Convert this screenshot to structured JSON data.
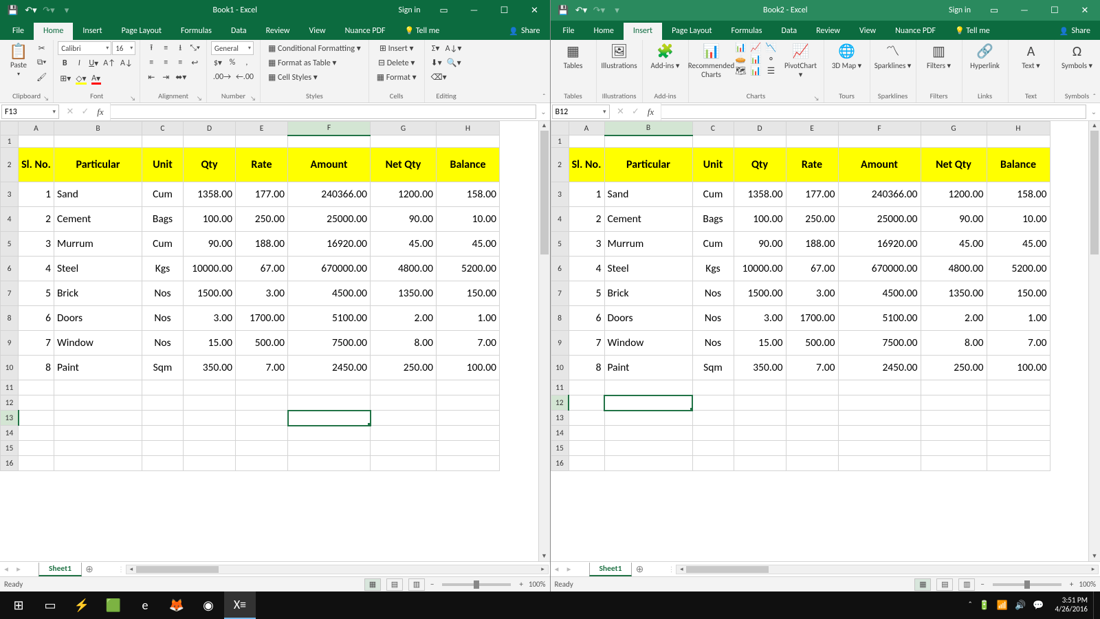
{
  "taskbar": {
    "time": "3:51 PM",
    "date": "4/26/2016",
    "apps": [
      "start",
      "taskview",
      "winamp",
      "umenu",
      "edge",
      "firefox",
      "chrome",
      "excel"
    ],
    "active_app": "excel",
    "tray": [
      "chev",
      "battery",
      "wifi",
      "vol",
      "eng"
    ]
  },
  "windows": [
    {
      "title": "Book1 - Excel",
      "active": true,
      "signin": "Sign in",
      "active_tab": "Home",
      "tabs": [
        "File",
        "Home",
        "Insert",
        "Page Layout",
        "Formulas",
        "Data",
        "Review",
        "View",
        "Nuance PDF",
        "Tell me"
      ],
      "share": "Share",
      "namebox": "F13",
      "selected_cell": {
        "col": "F",
        "row": 13
      },
      "home_ribbon": {
        "clipboard": {
          "label": "Clipboard",
          "paste": "Paste"
        },
        "font": {
          "label": "Font",
          "name": "Calibri",
          "size": "16"
        },
        "alignment": {
          "label": "Alignment"
        },
        "number": {
          "label": "Number",
          "format": "General"
        },
        "styles": {
          "label": "Styles",
          "cond": "Conditional Formatting",
          "table": "Format as Table",
          "cell": "Cell Styles"
        },
        "cells": {
          "label": "Cells",
          "insert": "Insert",
          "delete": "Delete",
          "format": "Format"
        },
        "editing": {
          "label": "Editing"
        }
      },
      "sheet_tab": "Sheet1",
      "status": "Ready",
      "zoom": "100%"
    },
    {
      "title": "Book2 - Excel",
      "active": false,
      "signin": "Sign in",
      "active_tab": "Insert",
      "tabs": [
        "File",
        "Home",
        "Insert",
        "Page Layout",
        "Formulas",
        "Data",
        "Review",
        "View",
        "Nuance PDF",
        "Tell me"
      ],
      "share": "Share",
      "namebox": "B12",
      "selected_cell": {
        "col": "B",
        "row": 12
      },
      "insert_ribbon": {
        "groups": [
          {
            "label": "Tables",
            "btns": [
              {
                "ico": "▦",
                "txt": "Tables"
              }
            ]
          },
          {
            "label": "Illustrations",
            "btns": [
              {
                "ico": "🖼",
                "txt": "Illustrations"
              }
            ]
          },
          {
            "label": "Add-ins",
            "btns": [
              {
                "ico": "🧩",
                "txt": "Add-ins ▾"
              }
            ]
          },
          {
            "label": "Charts",
            "btns": [
              {
                "ico": "📊",
                "txt": "Recommended Charts"
              }
            ],
            "minigrid": true,
            "pivot": {
              "ico": "📈",
              "txt": "PivotChart ▾"
            }
          },
          {
            "label": "Tours",
            "btns": [
              {
                "ico": "🌐",
                "txt": "3D Map ▾"
              }
            ]
          },
          {
            "label": "Sparklines",
            "btns": [
              {
                "ico": "〽",
                "txt": "Sparklines ▾"
              }
            ]
          },
          {
            "label": "Filters",
            "btns": [
              {
                "ico": "▥",
                "txt": "Filters ▾"
              }
            ]
          },
          {
            "label": "Links",
            "btns": [
              {
                "ico": "🔗",
                "txt": "Hyperlink"
              }
            ]
          },
          {
            "label": "Text",
            "btns": [
              {
                "ico": "A",
                "txt": "Text ▾"
              }
            ]
          },
          {
            "label": "Symbols",
            "btns": [
              {
                "ico": "Ω",
                "txt": "Symbols ▾"
              }
            ]
          }
        ]
      },
      "sheet_tab": "Sheet1",
      "status": "Ready",
      "zoom": "100%"
    }
  ],
  "table": {
    "columns": [
      "A",
      "B",
      "C",
      "D",
      "E",
      "F",
      "G",
      "H"
    ],
    "col_widths": {
      "A": 52,
      "B": 128,
      "C": 60,
      "D": 76,
      "E": 76,
      "F": 120,
      "G": 96,
      "H": 92
    },
    "col_align": {
      "A": "r",
      "B": "l",
      "C": "c",
      "D": "r",
      "E": "r",
      "F": "r",
      "G": "r",
      "H": "r"
    },
    "header_row_index": 2,
    "headers": [
      "Sl. No.",
      "Particular",
      "Unit",
      "Qty",
      "Rate",
      "Amount",
      "Net Qty",
      "Balance"
    ],
    "rows": [
      {
        "r": 3,
        "v": [
          "1",
          "Sand",
          "Cum",
          "1358.00",
          "177.00",
          "240366.00",
          "1200.00",
          "158.00"
        ]
      },
      {
        "r": 4,
        "v": [
          "2",
          "Cement",
          "Bags",
          "100.00",
          "250.00",
          "25000.00",
          "90.00",
          "10.00"
        ]
      },
      {
        "r": 5,
        "v": [
          "3",
          "Murrum",
          "Cum",
          "90.00",
          "188.00",
          "16920.00",
          "45.00",
          "45.00"
        ]
      },
      {
        "r": 6,
        "v": [
          "4",
          "Steel",
          "Kgs",
          "10000.00",
          "67.00",
          "670000.00",
          "4800.00",
          "5200.00"
        ]
      },
      {
        "r": 7,
        "v": [
          "5",
          "Brick",
          "Nos",
          "1500.00",
          "3.00",
          "4500.00",
          "1350.00",
          "150.00"
        ]
      },
      {
        "r": 8,
        "v": [
          "6",
          "Doors",
          "Nos",
          "3.00",
          "1700.00",
          "5100.00",
          "2.00",
          "1.00"
        ]
      },
      {
        "r": 9,
        "v": [
          "7",
          "Window",
          "Nos",
          "15.00",
          "500.00",
          "7500.00",
          "8.00",
          "7.00"
        ]
      },
      {
        "r": 10,
        "v": [
          "8",
          "Paint",
          "Sqm",
          "350.00",
          "7.00",
          "2450.00",
          "250.00",
          "100.00"
        ]
      }
    ],
    "total_rows": 16,
    "row1_height": 18
  },
  "colors": {
    "excel_green": "#0c6b3f",
    "header_yellow": "#ffff00",
    "selection": "#217346",
    "ribbon_bg": "#f3f3f3",
    "grid_border": "#d4d4d4"
  }
}
